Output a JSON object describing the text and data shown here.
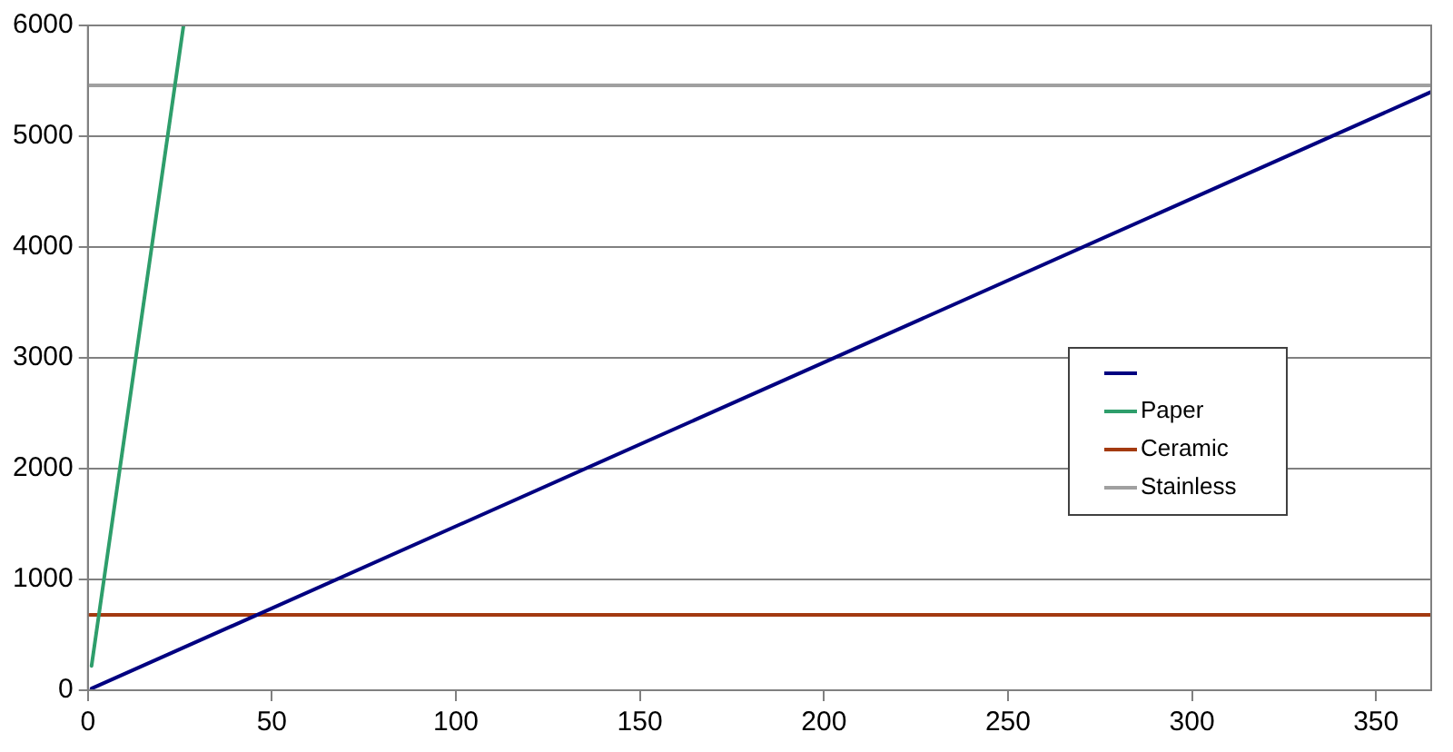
{
  "chart_data": {
    "type": "line",
    "xlim": [
      0,
      365
    ],
    "xticks": [
      0,
      50,
      100,
      150,
      200,
      250,
      300,
      350
    ],
    "ylim": [
      0,
      6000
    ],
    "yticks": [
      0,
      1000,
      2000,
      3000,
      4000,
      5000,
      6000
    ],
    "grid": "y",
    "legend": "right",
    "marker": "none",
    "line_style": "solid",
    "series": [
      {
        "color": "#000080",
        "x": [
          1,
          365
        ],
        "values": [
          15,
          5400
        ]
      },
      {
        "name": "Paper",
        "color": "#2e9e6b",
        "x": [
          1,
          26
        ],
        "values": [
          220,
          6000
        ]
      },
      {
        "name": "Ceramic",
        "color": "#a33a10",
        "x": [
          0.5,
          365
        ],
        "values": [
          680,
          680
        ]
      },
      {
        "name": "Stainless",
        "color": "#a0a0a0",
        "x": [
          0,
          365
        ],
        "values": [
          5460,
          5460
        ]
      }
    ]
  }
}
